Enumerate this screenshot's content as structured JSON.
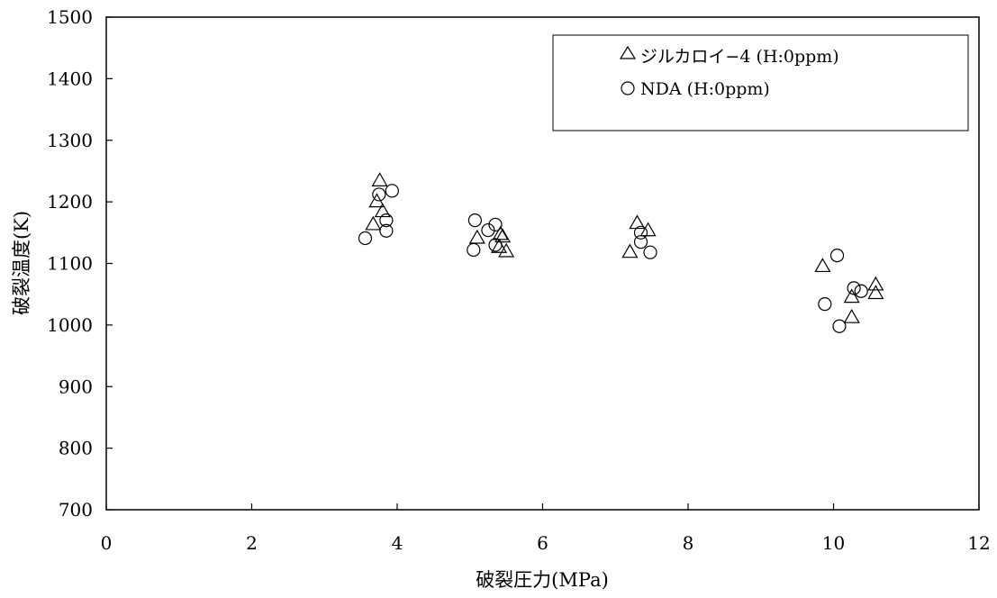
{
  "chart_data": {
    "type": "scatter",
    "title": "",
    "xlabel": "破裂圧力(MPa)",
    "ylabel": "破裂温度(K)",
    "xlim": [
      0,
      12
    ],
    "ylim": [
      700,
      1500
    ],
    "xticks": [
      0,
      2,
      4,
      6,
      8,
      10,
      12
    ],
    "yticks": [
      700,
      800,
      900,
      1000,
      1100,
      1200,
      1300,
      1400,
      1500
    ],
    "xtick_labels": [
      "0",
      "2",
      "4",
      "6",
      "8",
      "10",
      "12"
    ],
    "ytick_labels": [
      "700",
      "800",
      "900",
      "1000",
      "1100",
      "1200",
      "1300",
      "1400",
      "1500"
    ],
    "grid": false,
    "legend_position": "top-right",
    "series": [
      {
        "name": "ジルカロイ−4 (H:0ppm)",
        "marker": "triangle",
        "color": "#000000",
        "points": [
          [
            3.76,
            1234
          ],
          [
            3.72,
            1200
          ],
          [
            3.8,
            1184
          ],
          [
            3.67,
            1163
          ],
          [
            5.1,
            1141
          ],
          [
            5.42,
            1147
          ],
          [
            5.45,
            1143
          ],
          [
            5.4,
            1126
          ],
          [
            5.5,
            1119
          ],
          [
            7.3,
            1165
          ],
          [
            7.45,
            1153
          ],
          [
            7.2,
            1118
          ],
          [
            9.85,
            1095
          ],
          [
            10.25,
            1045
          ],
          [
            10.25,
            1012
          ],
          [
            10.58,
            1065
          ],
          [
            10.58,
            1051
          ]
        ]
      },
      {
        "name": "NDA (H:0ppm)",
        "marker": "circle",
        "color": "#000000",
        "points": [
          [
            3.93,
            1218
          ],
          [
            3.75,
            1212
          ],
          [
            3.85,
            1170
          ],
          [
            3.85,
            1153
          ],
          [
            3.56,
            1141
          ],
          [
            5.07,
            1170
          ],
          [
            5.35,
            1163
          ],
          [
            5.25,
            1154
          ],
          [
            5.35,
            1130
          ],
          [
            5.05,
            1122
          ],
          [
            7.35,
            1150
          ],
          [
            7.35,
            1135
          ],
          [
            7.48,
            1118
          ],
          [
            10.05,
            1113
          ],
          [
            9.88,
            1034
          ],
          [
            10.28,
            1060
          ],
          [
            10.38,
            1055
          ],
          [
            10.08,
            998
          ]
        ]
      }
    ]
  }
}
